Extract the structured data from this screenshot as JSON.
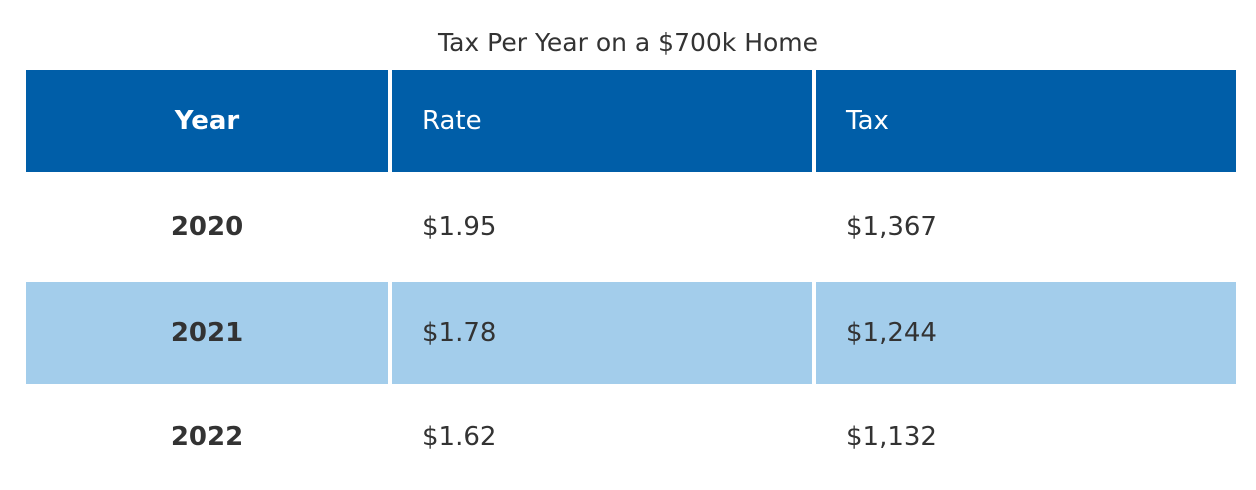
{
  "table": {
    "title": "Tax Per Year on a $700k Home",
    "header": [
      "Year",
      "Rate",
      "Tax"
    ],
    "rows": [
      [
        "2020",
        "$1.95",
        "$1,367"
      ],
      [
        "2021",
        "$1.78",
        "$1,244"
      ],
      [
        "2022",
        "$1.62",
        "$1,132"
      ]
    ]
  }
}
